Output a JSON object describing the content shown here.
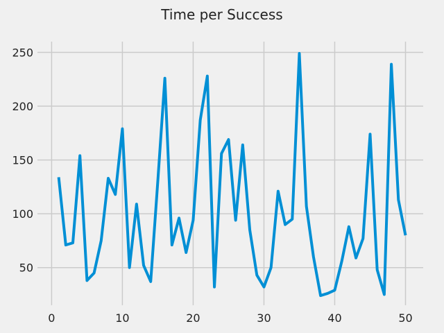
{
  "chart_data": {
    "type": "line",
    "title": "Time per Success",
    "xlabel": "",
    "ylabel": "",
    "xlim": [
      -2,
      52.5
    ],
    "ylim": [
      15,
      260
    ],
    "xticks": [
      0,
      10,
      20,
      30,
      40,
      50
    ],
    "yticks": [
      50,
      100,
      150,
      200,
      250
    ],
    "grid": true,
    "series": [
      {
        "color": "#008fd5",
        "x": [
          1,
          2,
          3,
          4,
          5,
          6,
          7,
          8,
          9,
          10,
          11,
          12,
          13,
          14,
          15,
          16,
          17,
          18,
          19,
          20,
          21,
          22,
          23,
          24,
          25,
          26,
          27,
          28,
          29,
          30,
          31,
          32,
          33,
          34,
          35,
          36,
          37,
          38,
          39,
          40,
          41,
          42,
          43,
          44,
          45,
          46,
          47,
          48,
          49,
          50
        ],
        "y": [
          134,
          71,
          73,
          154,
          38,
          45,
          75,
          133,
          118,
          179,
          50,
          109,
          52,
          37,
          130,
          226,
          71,
          96,
          64,
          94,
          187,
          228,
          32,
          156,
          169,
          94,
          164,
          85,
          43,
          32,
          50,
          121,
          90,
          95,
          249,
          107,
          60,
          24,
          26,
          29,
          56,
          88,
          59,
          77,
          174,
          48,
          25,
          239,
          113,
          80
        ]
      }
    ]
  },
  "style": {
    "background": "#f0f0f0",
    "grid_color": "#cbcbcb",
    "line_color": "#008fd5"
  }
}
